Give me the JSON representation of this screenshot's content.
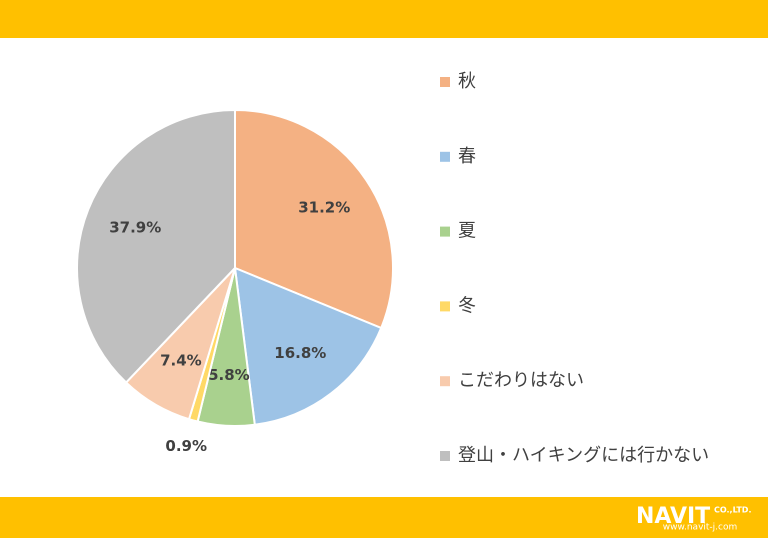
{
  "chart_data": {
    "type": "pie",
    "categories": [
      "秋",
      "春",
      "夏",
      "冬",
      "こだわりはない",
      "登山・ハイキングには行かない"
    ],
    "values": [
      31.2,
      16.8,
      5.8,
      0.9,
      7.4,
      37.9
    ],
    "value_labels": [
      "31.2%",
      "16.8%",
      "5.8%",
      "0.9%",
      "7.4%",
      "37.9%"
    ],
    "colors": [
      "#f4b183",
      "#9dc3e6",
      "#a9d18e",
      "#ffd966",
      "#f8cbad",
      "#bfbfbf"
    ],
    "legend": "right"
  },
  "footer": {
    "logo": "NAVIT",
    "company": "CO.,LTD.",
    "url": "www.navit-j.com"
  }
}
